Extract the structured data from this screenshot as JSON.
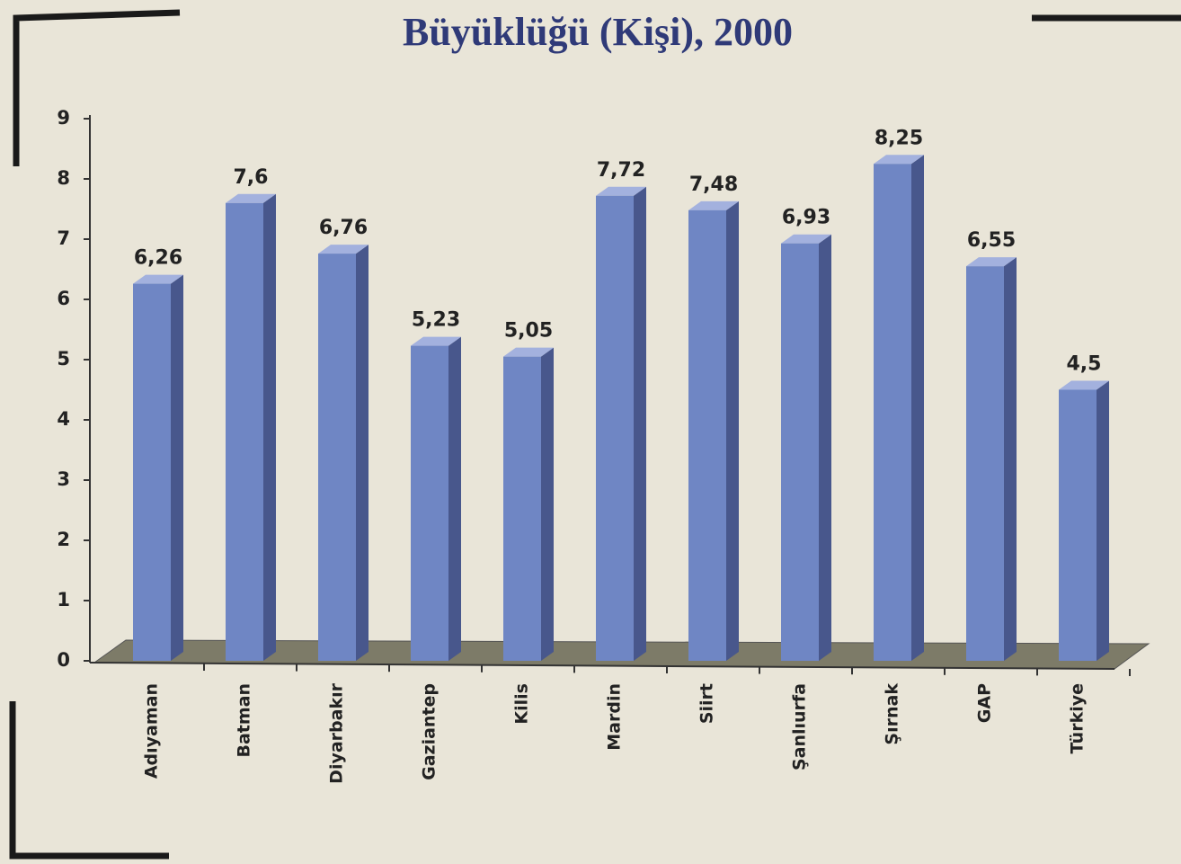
{
  "chart_data": {
    "type": "bar",
    "title": "Büyüklüğü (Kişi), 2000",
    "categories": [
      "Adıyaman",
      "Batman",
      "Diyarbakır",
      "Gaziantep",
      "Kilis",
      "Mardin",
      "Siirt",
      "Şanlıurfa",
      "Şırnak",
      "GAP",
      "Türkiye"
    ],
    "values": [
      6.26,
      7.6,
      6.76,
      5.23,
      5.05,
      7.72,
      7.48,
      6.93,
      8.25,
      6.55,
      4.5
    ],
    "value_labels": [
      "6,26",
      "7,6",
      "6,76",
      "5,23",
      "5,05",
      "7,72",
      "7,48",
      "6,93",
      "8,25",
      "6,55",
      "4,5"
    ],
    "color": "#6f86c4",
    "ylim": [
      0,
      9
    ],
    "yticks": [
      0,
      1,
      2,
      3,
      4,
      5,
      6,
      7,
      8,
      9
    ]
  }
}
